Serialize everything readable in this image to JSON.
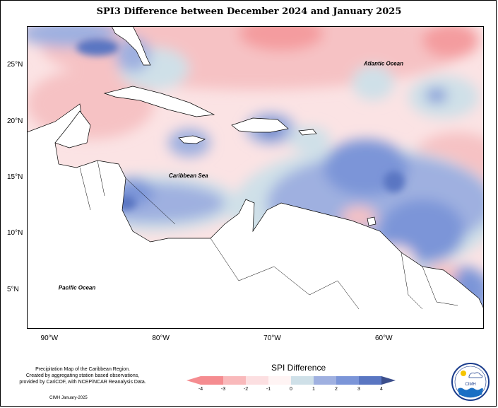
{
  "title": "SPI3 Difference between December 2024 and January 2025",
  "map": {
    "lat_range": [
      1.5,
      28.5
    ],
    "lon_range": [
      -92,
      -51
    ],
    "ocean_labels": [
      {
        "text": "Atlantic Ocean",
        "lon": -60,
        "lat": 25
      },
      {
        "text": "Caribbean Sea",
        "lon": -77.5,
        "lat": 15
      },
      {
        "text": "Pacific Ocean",
        "lon": -87.5,
        "lat": 5
      }
    ],
    "lat_ticks": [
      "25°N",
      "20°N",
      "15°N",
      "10°N",
      "5°N"
    ],
    "lat_values": [
      25,
      20,
      15,
      10,
      5
    ],
    "lon_ticks": [
      "90°W",
      "80°W",
      "70°W",
      "60°W"
    ],
    "lon_values": [
      -90,
      -80,
      -70,
      -60
    ]
  },
  "legend": {
    "title": "SPI Difference",
    "ticks": [
      "-4",
      "-3",
      "-2",
      "-1",
      "0",
      "1",
      "2",
      "3",
      "4"
    ],
    "colors": [
      "#f58c90",
      "#f9b9bb",
      "#fcdfe1",
      "#fff4f4",
      "#cfe0e8",
      "#9fb0e0",
      "#7b95d8",
      "#5a76c2"
    ],
    "arrow_left_color": "#f58c90",
    "arrow_right_color": "#3c4f8c"
  },
  "credits": {
    "line1": "Precipitation Map of the Caribbean Region.",
    "line2": "Created by aggregating station based observations,",
    "line3": "provided by CariCOF, with NCEP/NCAR Reanalysis Data."
  },
  "footer": "CIMH January-2025",
  "logo": {
    "text": "CIMH"
  }
}
